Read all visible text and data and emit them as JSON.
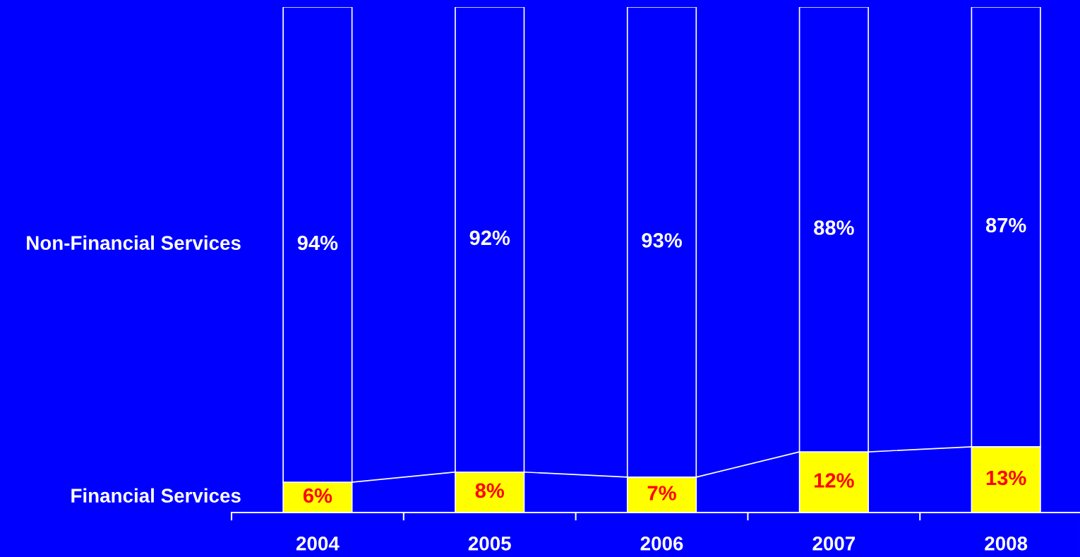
{
  "chart_data": {
    "type": "bar",
    "stacked": true,
    "categories": [
      "2004",
      "2005",
      "2006",
      "2007",
      "2008"
    ],
    "ylim": [
      0,
      100
    ],
    "legend": false,
    "series": [
      {
        "name": "Financial Services",
        "color": "#ffff00",
        "values": [
          6,
          8,
          7,
          12,
          13
        ],
        "value_labels": [
          "6%",
          "8%",
          "7%",
          "12%",
          "13%"
        ]
      },
      {
        "name": "Non-Financial Services",
        "color": "#0000ff",
        "values": [
          94,
          92,
          93,
          88,
          87
        ],
        "value_labels": [
          "94%",
          "92%",
          "93%",
          "88%",
          "87%"
        ]
      }
    ]
  }
}
